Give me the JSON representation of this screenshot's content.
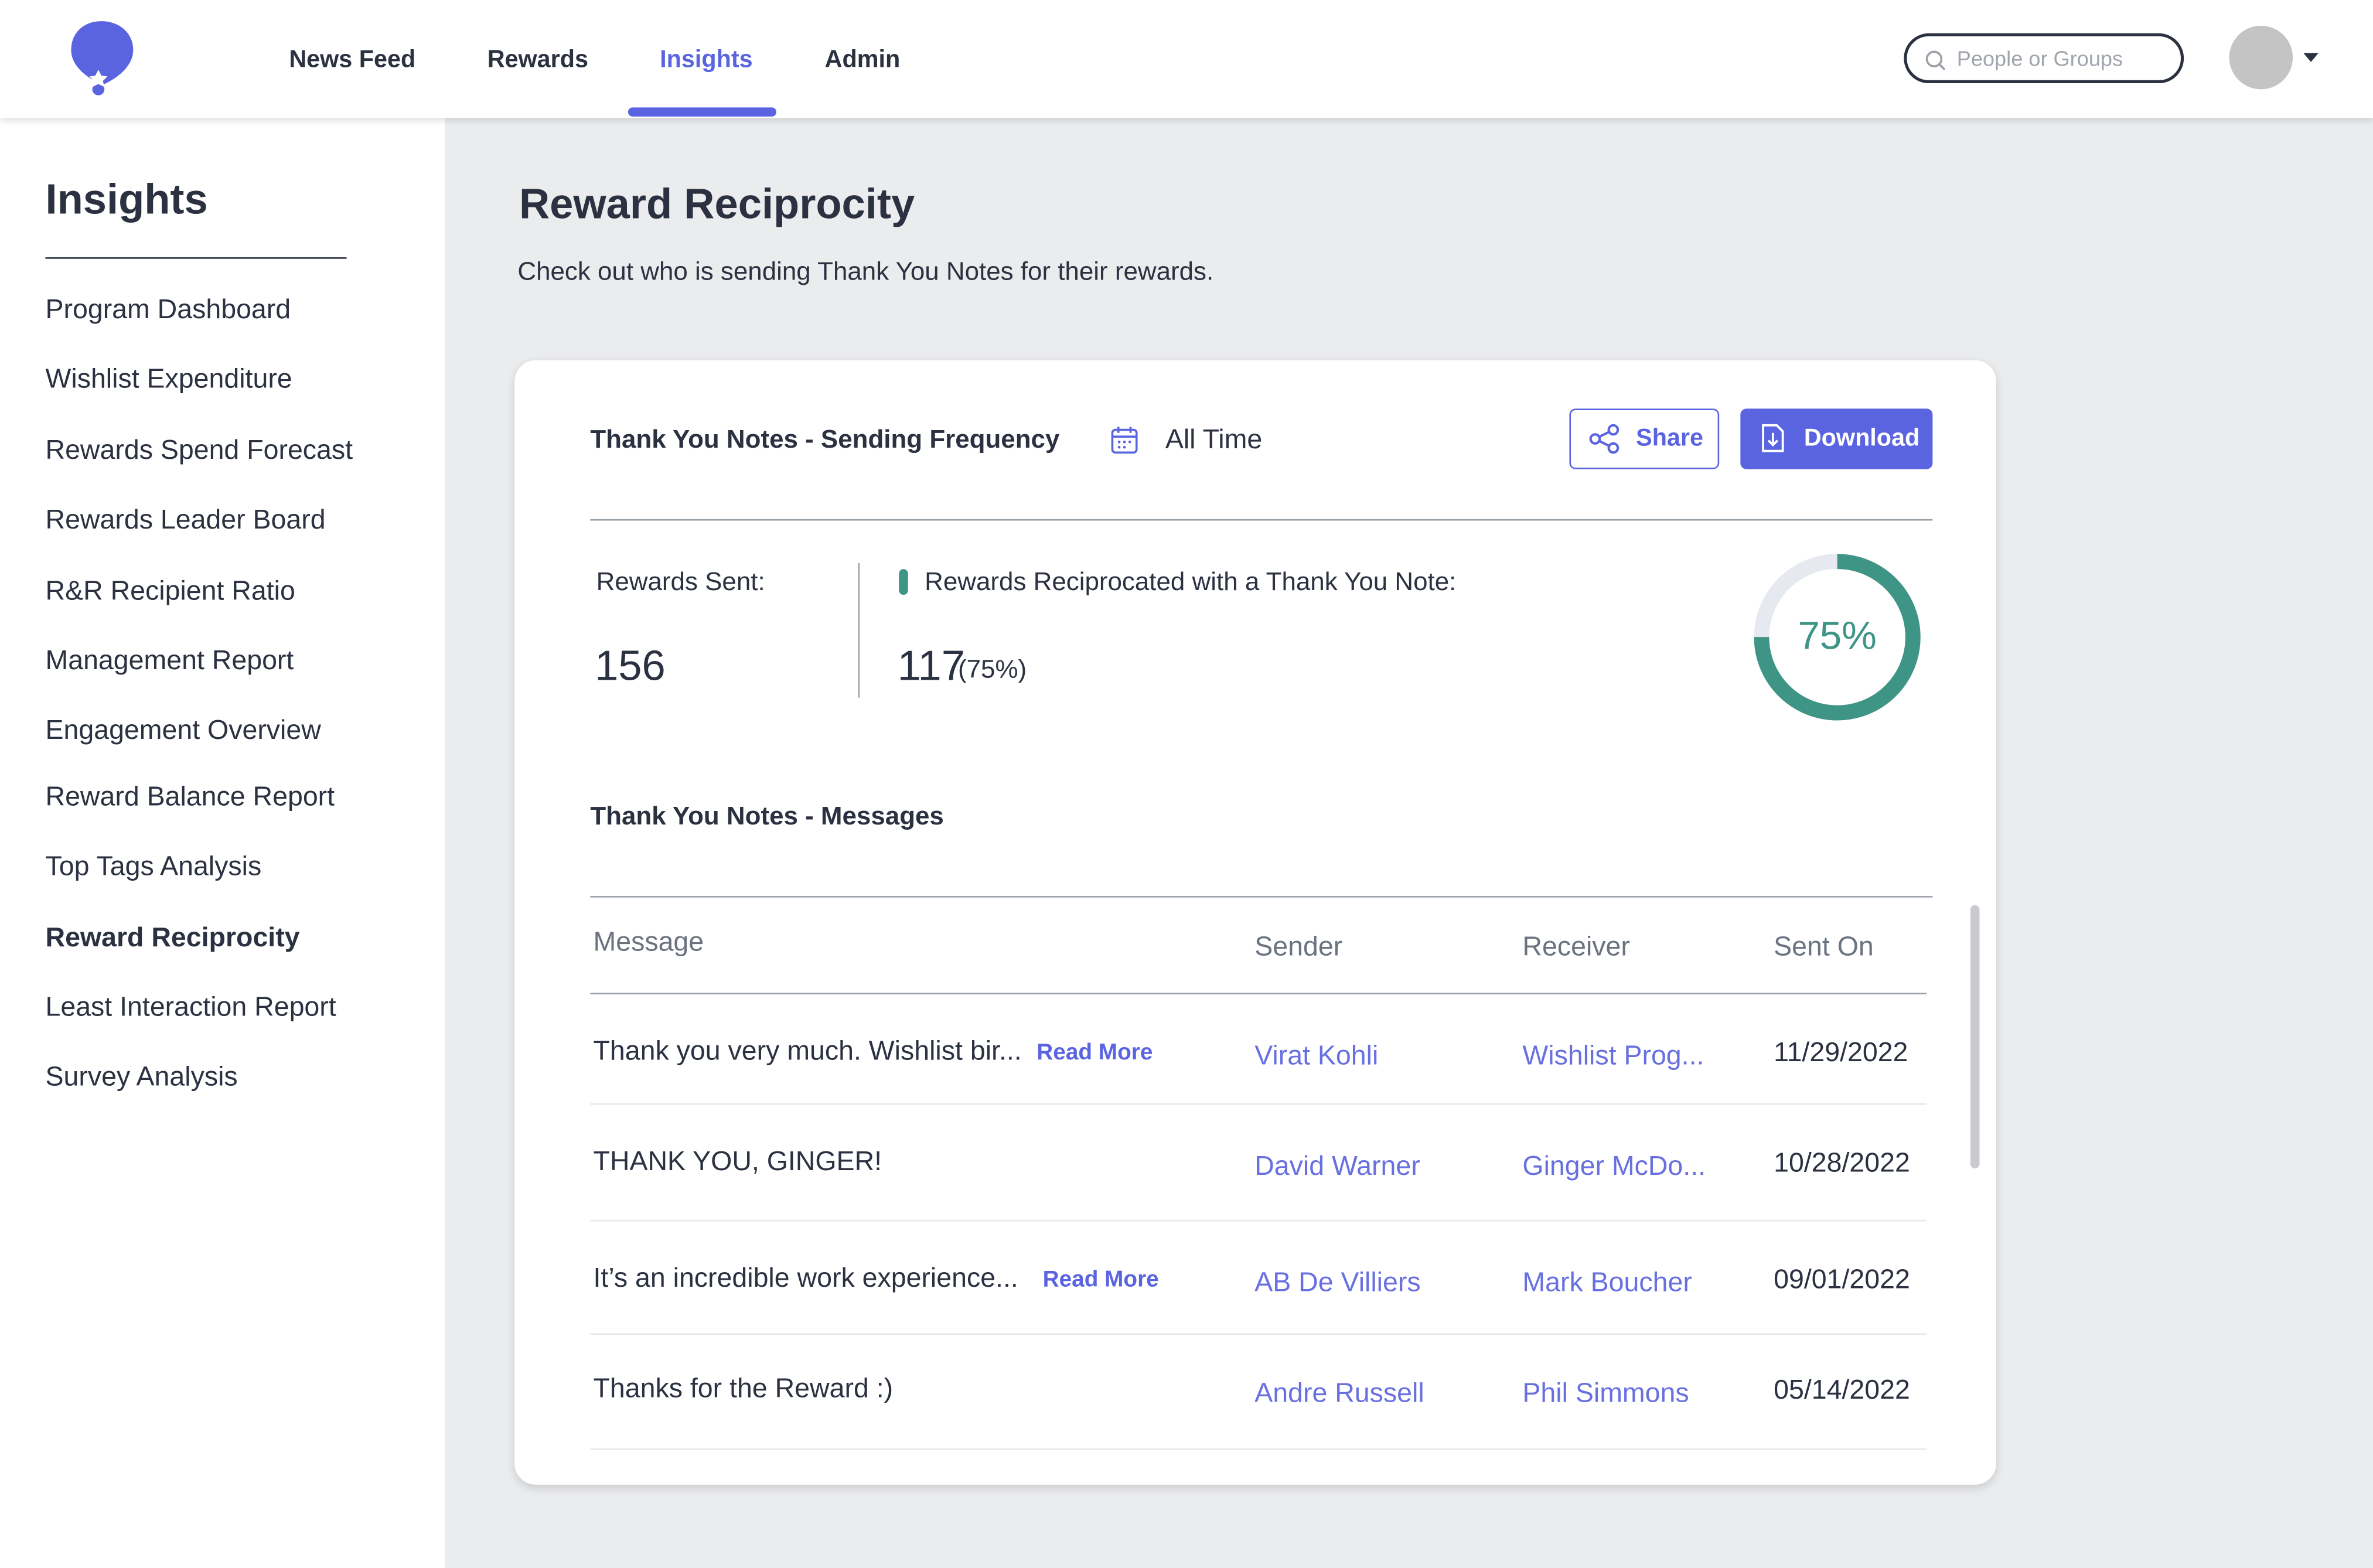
{
  "header": {
    "nav": [
      "News Feed",
      "Rewards",
      "Insights",
      "Admin"
    ],
    "active_nav": 2,
    "search_placeholder": "People or Groups"
  },
  "sidebar": {
    "title": "Insights",
    "items": [
      "Program Dashboard",
      "Wishlist Expenditure",
      "Rewards Spend Forecast",
      "Rewards Leader Board",
      "R&R Recipient Ratio",
      "Management Report",
      "Engagement Overview",
      "Reward Balance Report",
      "Top Tags Analysis",
      "Reward Reciprocity",
      "Least Interaction Report",
      "Survey Analysis"
    ],
    "active_item": 9
  },
  "page": {
    "title": "Reward Reciprocity",
    "subtitle": "Check out who is sending Thank You Notes for their rewards."
  },
  "card": {
    "title": "Thank You Notes - Sending Frequency",
    "period": "All Time",
    "share": "Share",
    "download": "Download",
    "sent_label": "Rewards Sent:",
    "sent_value": "156",
    "reciprocated_label": "Rewards Reciprocated with a Thank You Note:",
    "reciprocated_value": "117",
    "reciprocated_percent": "(75%)",
    "donut": {
      "value": 75,
      "label": "75%"
    },
    "messages_title": "Thank You Notes - Messages"
  },
  "table": {
    "headers": [
      "Message",
      "Sender",
      "Receiver",
      "Sent On"
    ],
    "rows": [
      {
        "message": "Thank you very much. Wishlist bir...",
        "read_more": "Read More",
        "sender": "Virat Kohli",
        "receiver": "Wishlist Prog...",
        "date": "11/29/2022"
      },
      {
        "message": "THANK YOU, GINGER!",
        "sender": "David Warner",
        "receiver": "Ginger McDo...",
        "date": "10/28/2022"
      },
      {
        "message": "It’s an incredible work experience...",
        "read_more": "Read More",
        "sender": "AB De Villiers",
        "receiver": "Mark Boucher",
        "date": "09/01/2022"
      },
      {
        "message": "Thanks for the Reward :)",
        "sender": "Andre Russell",
        "receiver": "Phil Simmons",
        "date": "05/14/2022"
      }
    ]
  }
}
